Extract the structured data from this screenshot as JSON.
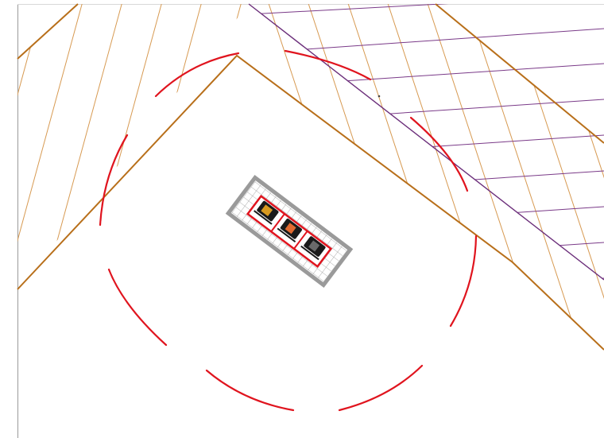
{
  "map": {
    "view": "site-plan",
    "colors": {
      "background": "#ffffff",
      "border": "#9a9a9a",
      "parcel_outline": "#b86f1a",
      "parcel_hatch": "#d79a52",
      "purple_boundary": "#6b2e7a",
      "purple_lines": "#7a3a88",
      "range_ring": "#e0141e",
      "equipment_grid": "#9a9a9a",
      "equipment_outline": "#e0141e",
      "equipment_body": "#1a1a1a"
    },
    "features": {
      "parcel_hatched": true,
      "range_ring_dashed": true,
      "equipment_block": true,
      "equipment_units": [
        {
          "icon": "device-icon",
          "accent": "#d89a20"
        },
        {
          "icon": "device-icon",
          "accent": "#e06a30"
        },
        {
          "icon": "device-icon",
          "accent": "#6a6a6a"
        }
      ]
    }
  }
}
